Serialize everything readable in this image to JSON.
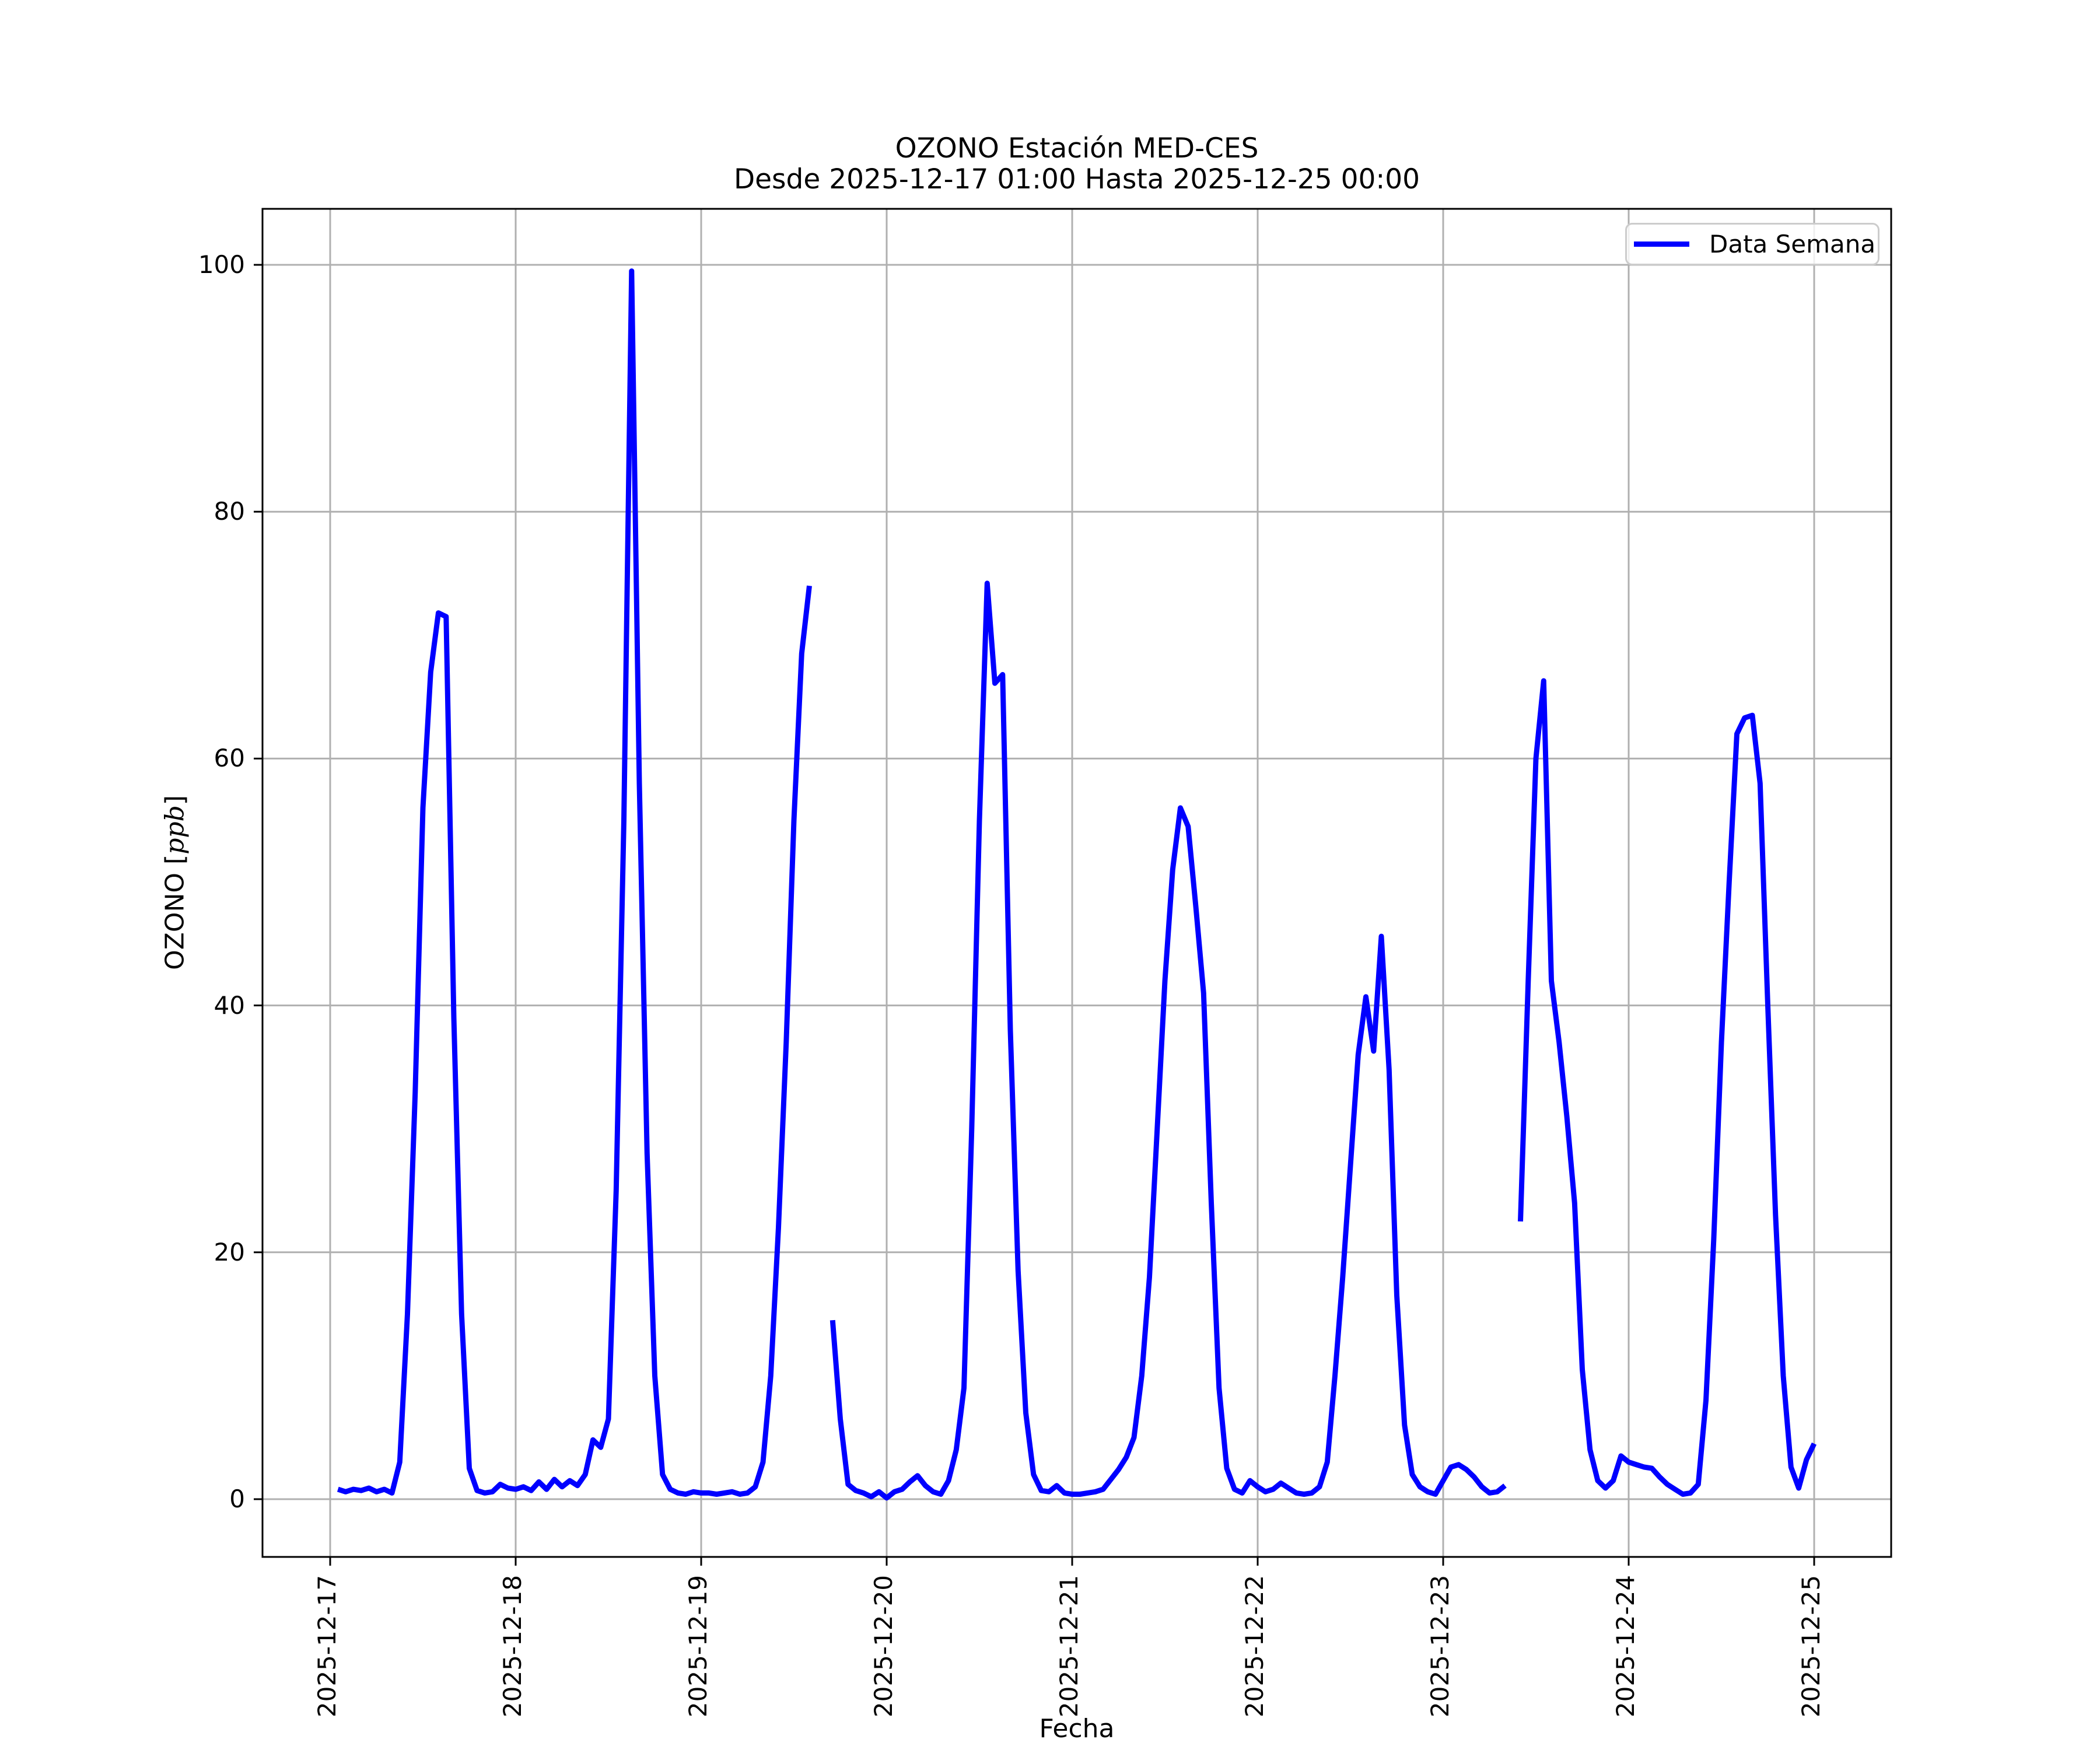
{
  "chart": {
    "title": "OZONO Estación MED-CES",
    "subtitle": "Desde 2025-12-17 01:00 Hasta 2025-12-25 00:00",
    "xlabel": "Fecha",
    "ylabel": "OZONO [ppb]",
    "ylabel_parts": {
      "prefix": "OZONO [",
      "italic": "ppb",
      "suffix": "]"
    },
    "legend": [
      "Data Semana"
    ]
  },
  "chart_data": {
    "type": "line",
    "title": "OZONO Estación MED-CES",
    "subtitle": "Desde 2025-12-17 01:00 Hasta 2025-12-25 00:00",
    "xlabel": "Fecha",
    "ylabel": "OZONO [ppb]",
    "legend_position": "upper right",
    "grid": true,
    "background": "#ffffff",
    "grid_color": "#b0b0b0",
    "line_color": "#0000ff",
    "x_start": "2025-12-17 01:00",
    "x_end": "2025-12-25 00:00",
    "x_step_hours": 1,
    "x_tick_labels": [
      "2025-12-17",
      "2025-12-18",
      "2025-12-19",
      "2025-12-20",
      "2025-12-21",
      "2025-12-22",
      "2025-12-23",
      "2025-12-24",
      "2025-12-25"
    ],
    "y_ticks": [
      0,
      20,
      40,
      60,
      80,
      100
    ],
    "ylim": [
      -4.7,
      104.5
    ],
    "series": [
      {
        "name": "Data Semana",
        "color": "#0000ff",
        "values": [
          0.8,
          0.6,
          0.8,
          0.7,
          0.9,
          0.6,
          0.8,
          0.5,
          3,
          15,
          33,
          56,
          67,
          71.8,
          71.5,
          39,
          15,
          2.5,
          0.7,
          0.5,
          0.6,
          1.2,
          0.9,
          0.8,
          1.0,
          0.7,
          1.4,
          0.8,
          1.6,
          1.0,
          1.5,
          1.1,
          2.0,
          4.8,
          4.2,
          6.5,
          25,
          55,
          99.5,
          58,
          28,
          10,
          2,
          0.8,
          0.5,
          0.4,
          0.6,
          0.5,
          0.5,
          0.4,
          0.5,
          0.6,
          0.4,
          0.5,
          1.0,
          3,
          10,
          22,
          37,
          55,
          68.5,
          74,
          null,
          null,
          14.5,
          6.5,
          1.2,
          0.7,
          0.5,
          0.2,
          0.6,
          0.1,
          0.6,
          0.8,
          1.4,
          1.9,
          1.1,
          0.6,
          0.4,
          1.5,
          4,
          9,
          30,
          55,
          74.2,
          66.1,
          66.8,
          38,
          18.5,
          7,
          2,
          0.7,
          0.6,
          1.1,
          0.5,
          0.4,
          0.4,
          0.5,
          0.6,
          0.8,
          1.6,
          2.4,
          3.4,
          5,
          10,
          18,
          30,
          42,
          51,
          56,
          54.5,
          48,
          41,
          24,
          9,
          2.5,
          0.8,
          0.5,
          1.5,
          1.0,
          0.6,
          0.8,
          1.3,
          0.9,
          0.5,
          0.4,
          0.5,
          1.0,
          3,
          10,
          18,
          27,
          36,
          40.7,
          36.3,
          45.6,
          34.8,
          16.5,
          6,
          2,
          1.0,
          0.6,
          0.4,
          1.5,
          2.6,
          2.8,
          2.4,
          1.8,
          1.0,
          0.5,
          0.6,
          1.1,
          null,
          22.5,
          42,
          60,
          66.3,
          42,
          37,
          31,
          24,
          10.5,
          4,
          1.5,
          0.9,
          1.5,
          3.5,
          3.0,
          2.8,
          2.6,
          2.5,
          1.8,
          1.2,
          0.8,
          0.4,
          0.5,
          1.2,
          8,
          21,
          37,
          50,
          62,
          63.3,
          63.5,
          58,
          40,
          23,
          10,
          2.6,
          0.9,
          3.2,
          4.5
        ]
      }
    ]
  }
}
